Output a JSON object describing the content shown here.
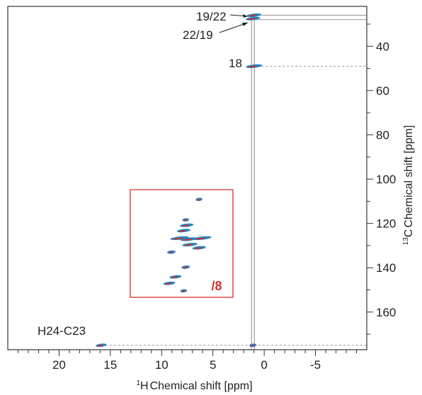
{
  "chart_data": {
    "type": "scatter",
    "title": "",
    "xlabel": "Chemical shift [ppm]",
    "xlabel_sup": "1",
    "xlabel_nuc": "H",
    "ylabel": "Chemical shift [ppm]",
    "ylabel_sup": "13",
    "ylabel_nuc": "C",
    "xlim": [
      25,
      -10
    ],
    "ylim": [
      177,
      22
    ],
    "xticks": [
      20,
      15,
      10,
      5,
      0,
      -5
    ],
    "xtick_labels": [
      "20",
      "15",
      "10",
      "5",
      "0",
      "-5"
    ],
    "yticks": [
      40,
      60,
      80,
      100,
      120,
      140,
      160
    ],
    "ytick_labels": [
      "40",
      "60",
      "80",
      "100",
      "120",
      "140",
      "160"
    ],
    "grid": false,
    "colors": {
      "series_a": "#1e88c8",
      "series_b": "#d32f2f",
      "frame": "#333333",
      "inset": "#d32f2f"
    },
    "projection_lines_x": [
      1.1
    ],
    "horizontal_guides": [
      {
        "label": "19/22",
        "y": 26
      },
      {
        "label": "22/19",
        "y": 28
      },
      {
        "label": "18",
        "y": 49
      },
      {
        "label": "H24-C23",
        "y": 175
      }
    ],
    "peaks": [
      {
        "x": 1.0,
        "y": 26,
        "w": 1.6
      },
      {
        "x": 1.1,
        "y": 27.5,
        "w": 1.6
      },
      {
        "x": 1.0,
        "y": 49,
        "w": 1.8
      },
      {
        "x": 15.9,
        "y": 175,
        "w": 1.2
      },
      {
        "x": 1.1,
        "y": 175,
        "w": 0.8
      }
    ],
    "annotations": [
      {
        "text": "19/22"
      },
      {
        "text": "22/19"
      },
      {
        "text": "18"
      },
      {
        "text": "H24-C23"
      }
    ],
    "inset": {
      "label": "/8",
      "xlim": [
        13,
        3
      ],
      "ylim": [
        105,
        155
      ],
      "peaks": [
        {
          "x": 6.3,
          "y": 109.5,
          "w": 0.8
        },
        {
          "x": 7.6,
          "y": 119,
          "w": 0.8
        },
        {
          "x": 7.5,
          "y": 121.5,
          "w": 1.6
        },
        {
          "x": 7.8,
          "y": 124,
          "w": 1.6
        },
        {
          "x": 8.2,
          "y": 127.5,
          "w": 2.2
        },
        {
          "x": 7.3,
          "y": 128,
          "w": 2.0
        },
        {
          "x": 6.0,
          "y": 127.5,
          "w": 2.2
        },
        {
          "x": 7.2,
          "y": 130.5,
          "w": 1.8
        },
        {
          "x": 6.3,
          "y": 132,
          "w": 1.6
        },
        {
          "x": 9.0,
          "y": 134,
          "w": 1.0
        },
        {
          "x": 7.6,
          "y": 141,
          "w": 1.0
        },
        {
          "x": 8.6,
          "y": 145.5,
          "w": 1.4
        },
        {
          "x": 9.2,
          "y": 148.5,
          "w": 1.4
        },
        {
          "x": 7.8,
          "y": 152,
          "w": 0.8
        }
      ]
    }
  }
}
